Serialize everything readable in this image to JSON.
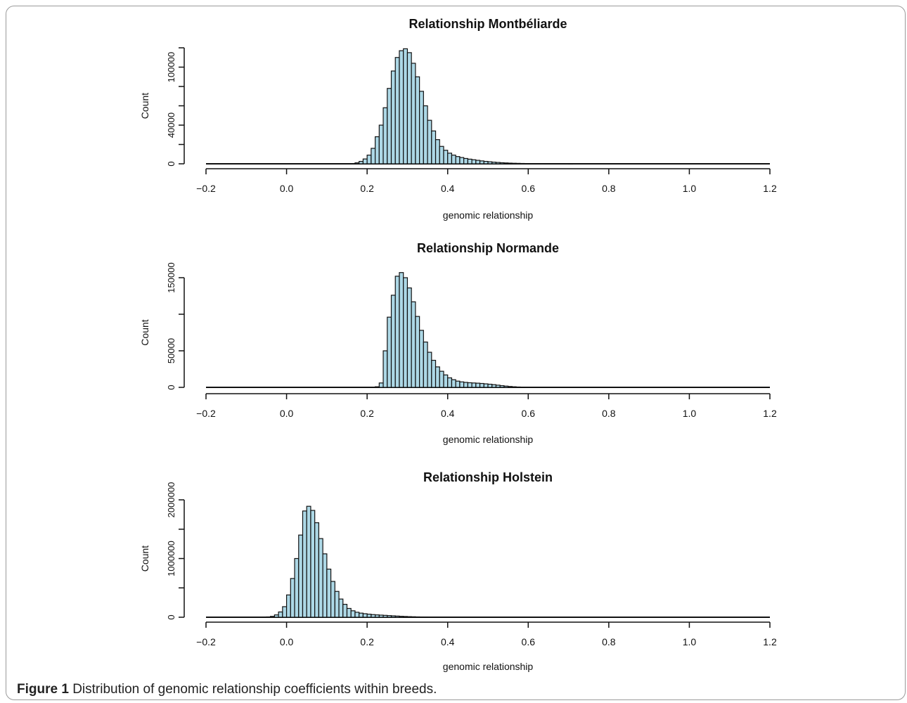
{
  "figure": {
    "caption_label": "Figure 1",
    "caption_text": "Distribution of genomic relationship coefficients within breeds."
  },
  "colors": {
    "bar_fill": "#add8e6",
    "bar_stroke": "#111111"
  },
  "chart_data": [
    {
      "type": "bar",
      "title": "Relationship Montbéliarde",
      "xlabel": "genomic relationship",
      "ylabel": "Count",
      "xlim": [
        -0.2,
        1.2
      ],
      "ylim": [
        0,
        120000
      ],
      "x_ticks": [
        -0.2,
        0.0,
        0.2,
        0.4,
        0.6,
        0.8,
        1.0,
        1.2
      ],
      "x_tick_labels": [
        "−0.2",
        "0.0",
        "0.2",
        "0.4",
        "0.6",
        "0.8",
        "1.0",
        "1.2"
      ],
      "y_ticks": [
        0,
        20000,
        40000,
        60000,
        80000,
        100000,
        120000
      ],
      "y_tick_labels": [
        "0",
        "",
        "40000",
        "",
        "",
        "100000",
        ""
      ],
      "bin_width": 0.01,
      "x": [
        0.16,
        0.17,
        0.18,
        0.19,
        0.2,
        0.21,
        0.22,
        0.23,
        0.24,
        0.25,
        0.26,
        0.27,
        0.28,
        0.29,
        0.3,
        0.31,
        0.32,
        0.33,
        0.34,
        0.35,
        0.36,
        0.37,
        0.38,
        0.39,
        0.4,
        0.41,
        0.42,
        0.43,
        0.44,
        0.45,
        0.46,
        0.47,
        0.48,
        0.49,
        0.5,
        0.51,
        0.52,
        0.53,
        0.54,
        0.55,
        0.56,
        0.57,
        0.58,
        0.59,
        0.6,
        0.61,
        0.62,
        0.63,
        0.64,
        0.65,
        0.66,
        0.67,
        0.68,
        0.69,
        0.7
      ],
      "values": [
        300,
        1000,
        2500,
        5000,
        9000,
        16000,
        28000,
        40000,
        58000,
        78000,
        96000,
        110000,
        117000,
        119000,
        115000,
        104000,
        90000,
        75000,
        60000,
        45000,
        34000,
        25000,
        18000,
        14000,
        11000,
        9000,
        7500,
        6500,
        5500,
        4800,
        4200,
        3600,
        3000,
        2500,
        2100,
        1700,
        1400,
        1100,
        900,
        700,
        550,
        450,
        350,
        300,
        250,
        220,
        200,
        180,
        170,
        150,
        130,
        110,
        90,
        70,
        50
      ]
    },
    {
      "type": "bar",
      "title": "Relationship Normande",
      "xlabel": "genomic relationship",
      "ylabel": "Count",
      "xlim": [
        -0.2,
        1.2
      ],
      "ylim": [
        0,
        150000
      ],
      "x_ticks": [
        -0.2,
        0.0,
        0.2,
        0.4,
        0.6,
        0.8,
        1.0,
        1.2
      ],
      "x_tick_labels": [
        "−0.2",
        "0.0",
        "0.2",
        "0.4",
        "0.6",
        "0.8",
        "1.0",
        "1.2"
      ],
      "y_ticks": [
        0,
        50000,
        100000,
        150000
      ],
      "y_tick_labels": [
        "0",
        "50000",
        "",
        "150000"
      ],
      "bin_width": 0.01,
      "x": [
        0.22,
        0.23,
        0.24,
        0.25,
        0.26,
        0.27,
        0.28,
        0.29,
        0.3,
        0.31,
        0.32,
        0.33,
        0.34,
        0.35,
        0.36,
        0.37,
        0.38,
        0.39,
        0.4,
        0.41,
        0.42,
        0.43,
        0.44,
        0.45,
        0.46,
        0.47,
        0.48,
        0.49,
        0.5,
        0.51,
        0.52,
        0.53,
        0.54,
        0.55,
        0.56,
        0.57,
        0.58
      ],
      "values": [
        800,
        6000,
        50000,
        96000,
        126000,
        152000,
        157000,
        150000,
        136000,
        117000,
        97000,
        78000,
        62000,
        48000,
        37000,
        28000,
        22000,
        17000,
        13000,
        10500,
        8500,
        7500,
        6800,
        6300,
        6000,
        5700,
        5300,
        4800,
        4300,
        3700,
        3000,
        2300,
        1700,
        1200,
        800,
        500,
        300
      ]
    },
    {
      "type": "bar",
      "title": "Relationship Holstein",
      "xlabel": "genomic relationship",
      "ylabel": "Count",
      "xlim": [
        -0.2,
        1.2
      ],
      "ylim": [
        0,
        2000000
      ],
      "x_ticks": [
        -0.2,
        0.0,
        0.2,
        0.4,
        0.6,
        0.8,
        1.0,
        1.2
      ],
      "x_tick_labels": [
        "−0.2",
        "0.0",
        "0.2",
        "0.4",
        "0.6",
        "0.8",
        "1.0",
        "1.2"
      ],
      "y_ticks": [
        0,
        500000,
        1000000,
        1500000,
        2000000
      ],
      "y_tick_labels": [
        "0",
        "",
        "1000000",
        "",
        "2000000"
      ],
      "bin_width": 0.01,
      "x": [
        -0.06,
        -0.05,
        -0.04,
        -0.03,
        -0.02,
        -0.01,
        0.0,
        0.01,
        0.02,
        0.03,
        0.04,
        0.05,
        0.06,
        0.07,
        0.08,
        0.09,
        0.1,
        0.11,
        0.12,
        0.13,
        0.14,
        0.15,
        0.16,
        0.17,
        0.18,
        0.19,
        0.2,
        0.21,
        0.22,
        0.23,
        0.24,
        0.25,
        0.26,
        0.27,
        0.28,
        0.29,
        0.3,
        0.31,
        0.32,
        0.33,
        0.34
      ],
      "values": [
        2000,
        6000,
        15000,
        40000,
        90000,
        180000,
        380000,
        660000,
        1000000,
        1400000,
        1810000,
        1890000,
        1820000,
        1610000,
        1340000,
        1080000,
        820000,
        610000,
        440000,
        310000,
        220000,
        150000,
        110000,
        85000,
        70000,
        60000,
        52000,
        45000,
        40000,
        36000,
        32000,
        28000,
        24000,
        20000,
        16000,
        13000,
        10000,
        8000,
        6000,
        5000,
        4000
      ]
    }
  ]
}
